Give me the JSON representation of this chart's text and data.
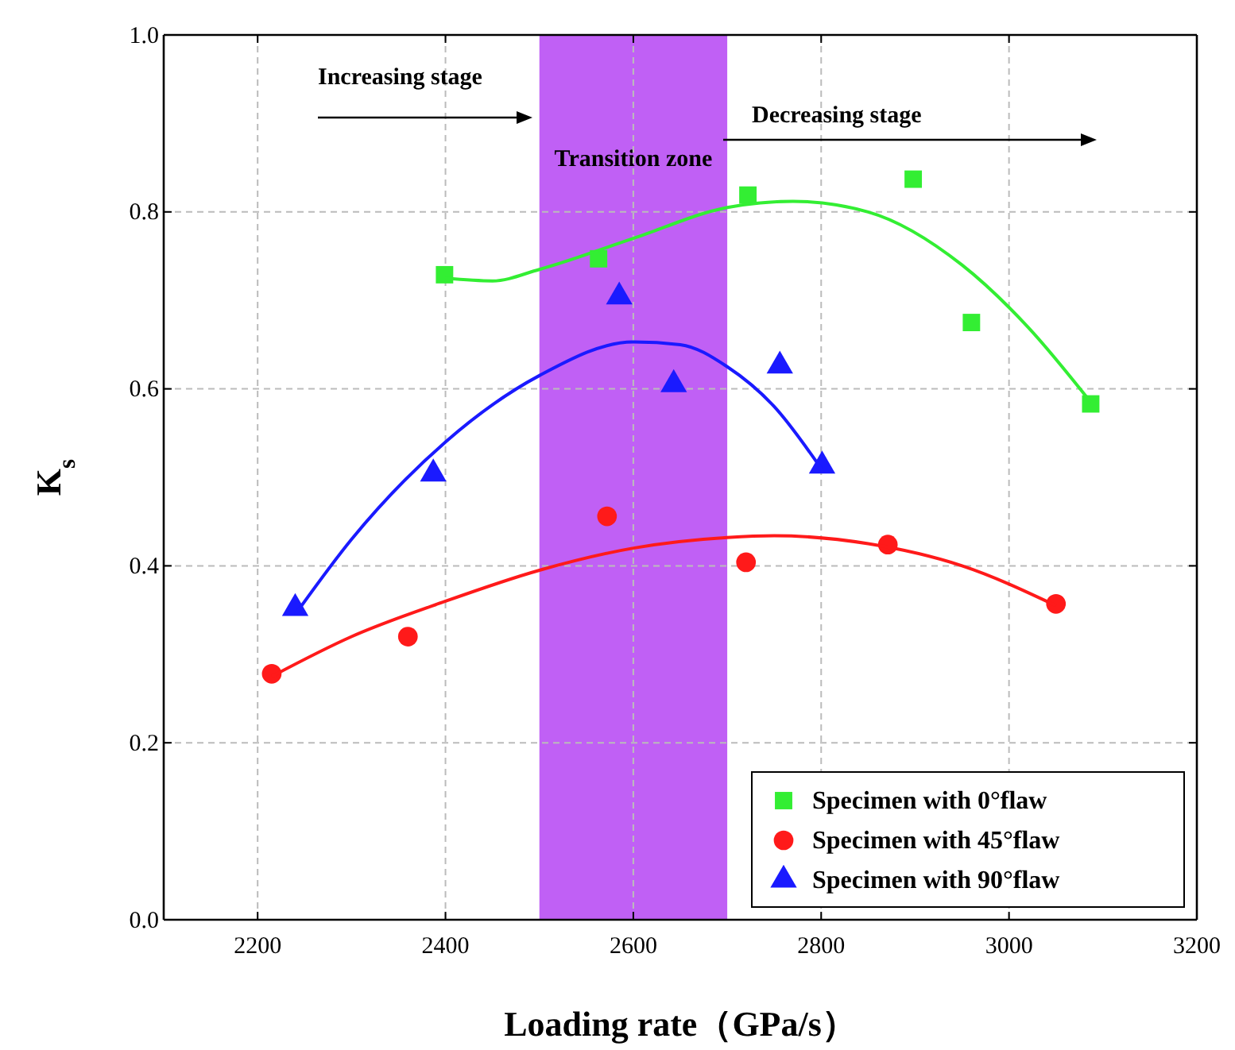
{
  "chart_data": {
    "type": "scatter",
    "xlabel": "Loading rate（GPa/s）",
    "ylabel": "K$_{s}$",
    "xlim": [
      2100,
      3200
    ],
    "xticks": [
      2200,
      2400,
      2600,
      2800,
      3000,
      3200
    ],
    "ylim": [
      0,
      1
    ],
    "yticks": [
      {
        "value": 0,
        "label": "0.0"
      },
      {
        "value": 0.2,
        "label": "0.2"
      },
      {
        "value": 0.4,
        "label": "0.4"
      },
      {
        "value": 0.6,
        "label": "0.6"
      },
      {
        "value": 0.8,
        "label": "0.8"
      },
      {
        "value": 1,
        "label": "1.0"
      }
    ],
    "grid": true,
    "legend": "bottom right",
    "series": [
      {
        "name": "Specimen with 0°flaw",
        "color": "#33ee33",
        "marker": "square",
        "x": [
          2399,
          2563,
          2722,
          2898,
          2960,
          3087
        ],
        "values": [
          0.729,
          0.747,
          0.819,
          0.837,
          0.675,
          0.583
        ]
      },
      {
        "name": "Specimen with 45°flaw",
        "color": "#ff1a1a",
        "marker": "circle",
        "x": [
          2215,
          2360,
          2572,
          2720,
          2871,
          3050
        ],
        "values": [
          0.278,
          0.32,
          0.456,
          0.404,
          0.424,
          0.357
        ]
      },
      {
        "name": "Specimen with 90°flaw",
        "color": "#1a1aff",
        "marker": "triangle",
        "x": [
          2240,
          2387,
          2585,
          2643,
          2756,
          2801
        ],
        "values": [
          0.352,
          0.504,
          0.704,
          0.605,
          0.626,
          0.513
        ]
      },
      {
        "type": "line",
        "color": "#33ee33",
        "marker": "none",
        "x": [
          2400,
          2450,
          2500,
          2600,
          2700,
          2770,
          2850,
          2950,
          3020,
          3087
        ],
        "values": [
          0.725,
          0.722,
          0.735,
          0.77,
          0.805,
          0.812,
          0.8,
          0.74,
          0.67,
          0.585
        ]
      },
      {
        "type": "line",
        "color": "#ff1a1a",
        "marker": "none",
        "x": [
          2215,
          2300,
          2400,
          2500,
          2600,
          2700,
          2750,
          2850,
          2950,
          3050
        ],
        "values": [
          0.275,
          0.32,
          0.36,
          0.395,
          0.42,
          0.432,
          0.434,
          0.425,
          0.4,
          0.355
        ]
      },
      {
        "type": "line",
        "color": "#1a1aff",
        "marker": "none",
        "x": [
          2240,
          2300,
          2400,
          2500,
          2600,
          2650,
          2700,
          2750,
          2800
        ],
        "values": [
          0.345,
          0.43,
          0.54,
          0.615,
          0.653,
          0.65,
          0.625,
          0.58,
          0.51
        ]
      }
    ],
    "bands": [
      {
        "axis": "x",
        "from": 2500,
        "to": 2700,
        "label": "Transition zone",
        "color": "#c060f5"
      }
    ],
    "annotations": [
      "Increasing stage",
      "Decreasing stage"
    ]
  }
}
